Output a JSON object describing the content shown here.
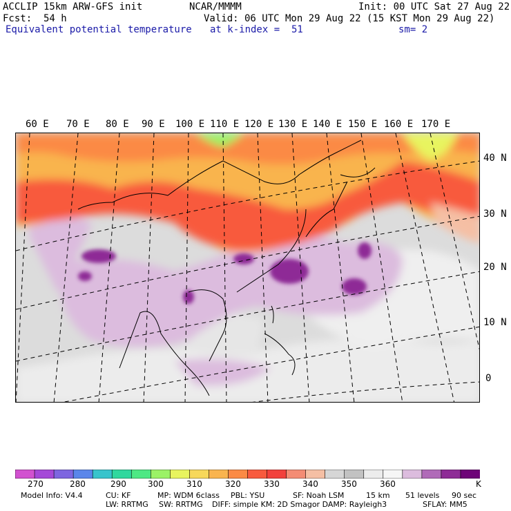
{
  "header": {
    "model": "ACCLIP 15km ARW-GFS init",
    "org": "NCAR/MMMM",
    "init": "Init: 00 UTC Sat 27 Aug 22",
    "fcst_label": "Fcst:",
    "fcst_value": "54 h",
    "valid": "Valid: 06 UTC Mon 29 Aug 22 (15 KST Mon 29 Aug 22)",
    "field": "Equivalent potential temperature",
    "level": "at k-index =  51",
    "smoothing": "sm= 2"
  },
  "map": {
    "lon_labels": [
      "60 E",
      "70 E",
      "80 E",
      "90 E",
      "100 E",
      "110 E",
      "120 E",
      "130 E",
      "140 E",
      "150 E",
      "160 E",
      "170 E"
    ],
    "lat_labels": [
      "40 N",
      "30 N",
      "20 N",
      "10 N",
      "0"
    ]
  },
  "colorbar": {
    "colors": [
      "#d251d0",
      "#a548d8",
      "#7e66e0",
      "#5a86ea",
      "#38c4cc",
      "#30d89e",
      "#4de884",
      "#9bf266",
      "#e8f45e",
      "#f7d85a",
      "#f9b44e",
      "#fb8a45",
      "#f85a3e",
      "#f2413c",
      "#f48c74",
      "#f5bfa4",
      "#d6d6d6",
      "#c2c2c2",
      "#ececec",
      "#f6f6f6",
      "#dcbcde",
      "#b06ab8",
      "#8e2c96",
      "#6e0478"
    ],
    "labels": [
      "270",
      "280",
      "290",
      "300",
      "310",
      "320",
      "330",
      "340",
      "350",
      "360"
    ],
    "unit": "K"
  },
  "footer": {
    "line1": [
      "Model Info: V4.4",
      "CU: KF",
      "MP: WDM 6class",
      "PBL: YSU",
      "SF: Noah LSM",
      "15 km",
      "51 levels",
      "90 sec"
    ],
    "line2": [
      "LW: RRTMG",
      "SW: RRTMG",
      "DIFF: simple KM: 2D Smagor DAMP: Rayleigh3",
      "SFLAY: MM5"
    ]
  }
}
